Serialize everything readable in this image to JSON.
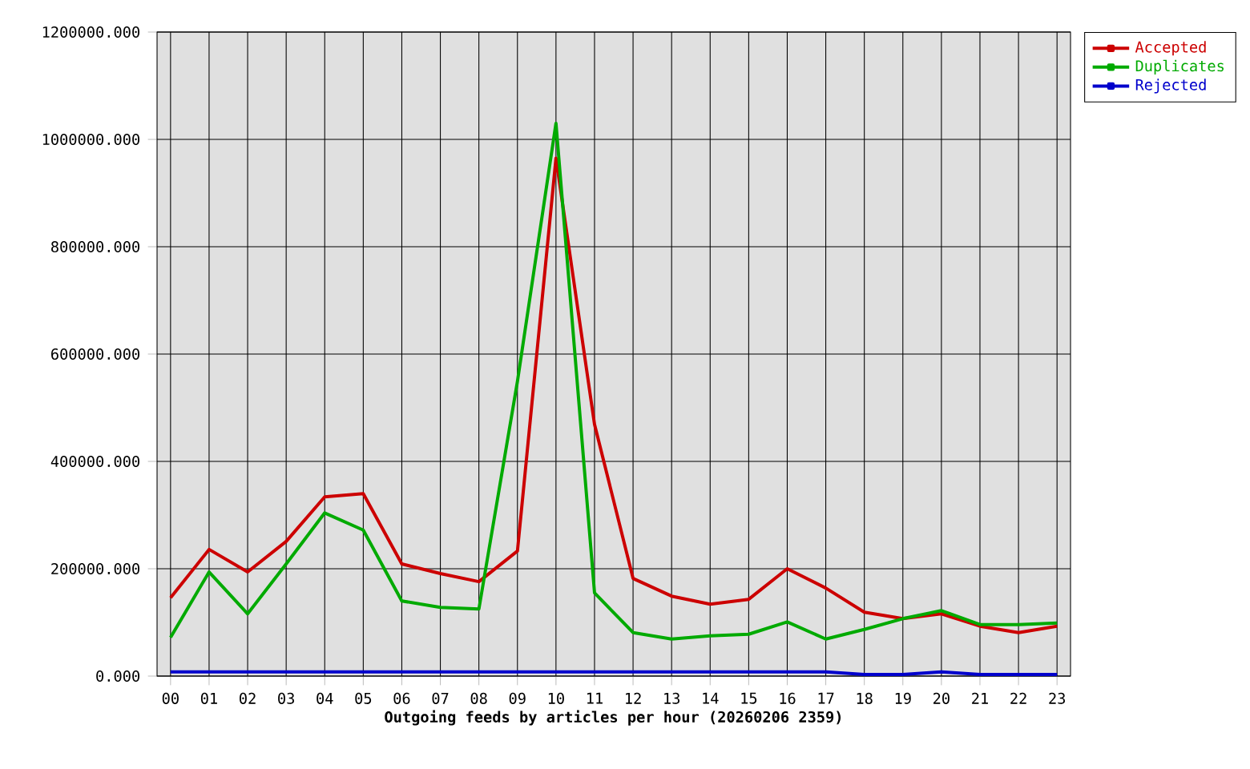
{
  "chart_data": {
    "type": "line",
    "xlabel": "Outgoing feeds by articles per hour (20260206 2359)",
    "categories": [
      "00",
      "01",
      "02",
      "03",
      "04",
      "05",
      "06",
      "07",
      "08",
      "09",
      "10",
      "11",
      "12",
      "13",
      "14",
      "15",
      "16",
      "17",
      "18",
      "19",
      "20",
      "21",
      "22",
      "23"
    ],
    "series": [
      {
        "name": "Accepted",
        "color": "#cc0000",
        "values": [
          146000,
          236000,
          194000,
          251000,
          334000,
          340000,
          209000,
          191000,
          176000,
          233000,
          965000,
          469000,
          182000,
          149000,
          134000,
          143000,
          200000,
          164000,
          119000,
          107000,
          116000,
          93000,
          81000,
          93000
        ]
      },
      {
        "name": "Duplicates",
        "color": "#00aa00",
        "values": [
          72000,
          194000,
          116000,
          209000,
          304000,
          272000,
          140000,
          128000,
          125000,
          549000,
          1030000,
          155000,
          81000,
          69000,
          75000,
          78000,
          101000,
          69000,
          87000,
          107000,
          122000,
          96000,
          96000,
          99000
        ]
      },
      {
        "name": "Rejected",
        "color": "#0000cc",
        "values": [
          8000,
          8000,
          8000,
          8000,
          8000,
          8000,
          8000,
          8000,
          8000,
          8000,
          8000,
          8000,
          8000,
          8000,
          8000,
          8000,
          8000,
          8000,
          3000,
          3000,
          8000,
          3000,
          3000,
          3000
        ]
      }
    ],
    "ylim": [
      0,
      1200000
    ],
    "yticks": [
      {
        "value": 0,
        "label": "0.000"
      },
      {
        "value": 200000,
        "label": "200000.000"
      },
      {
        "value": 400000,
        "label": "400000.000"
      },
      {
        "value": 600000,
        "label": "600000.000"
      },
      {
        "value": 800000,
        "label": "800000.000"
      },
      {
        "value": 1000000,
        "label": "1000000.000"
      },
      {
        "value": 1200000,
        "label": "1200000.000"
      }
    ],
    "grid": true,
    "legend": "top right",
    "line_style": "solid"
  }
}
